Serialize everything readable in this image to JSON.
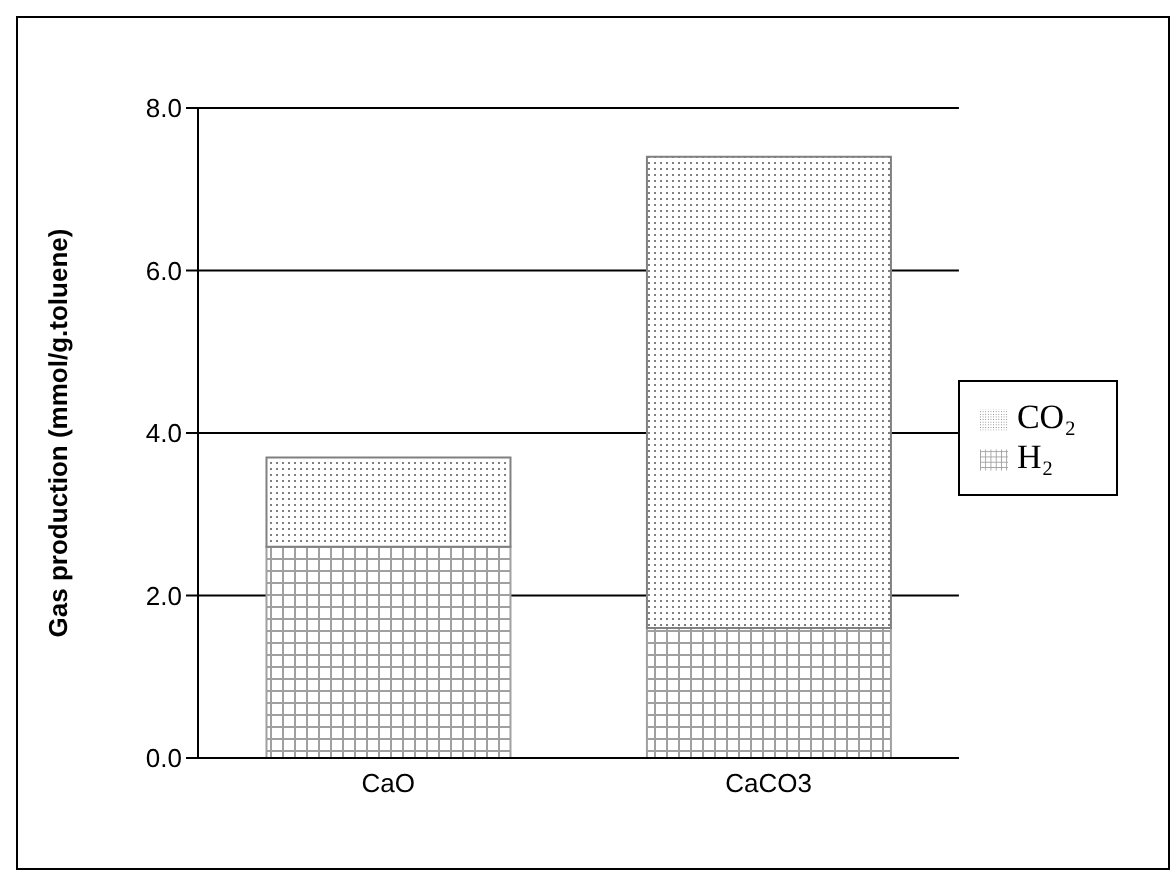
{
  "chart_data": {
    "type": "bar",
    "stacked": true,
    "ylabel": "Gas production (mmol/g.toluene)",
    "categories": [
      "CaO",
      "CaCO3"
    ],
    "series": [
      {
        "name": "H₂",
        "color": "#a0a0a0",
        "values": [
          2.6,
          1.6
        ]
      },
      {
        "name": "CO₂",
        "color": "#808080",
        "values": [
          1.1,
          5.8
        ]
      }
    ],
    "ylim": [
      0,
      8
    ],
    "yticks": [
      {
        "value": 0,
        "label": "0.0"
      },
      {
        "value": 2,
        "label": "2.0"
      },
      {
        "value": 4,
        "label": "4.0"
      },
      {
        "value": 6,
        "label": "6.0"
      },
      {
        "value": 8,
        "label": "8.0"
      }
    ],
    "grid": "y",
    "legend": "right"
  }
}
